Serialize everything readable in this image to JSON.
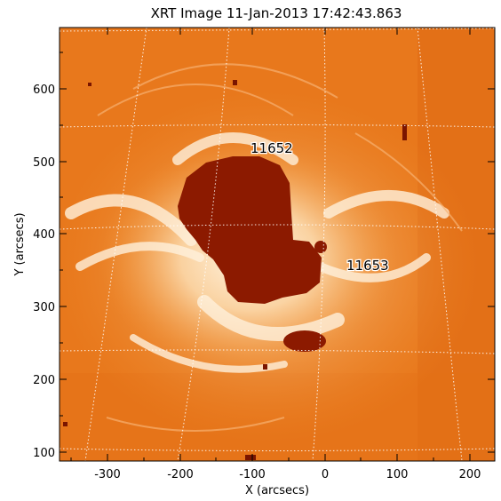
{
  "title": "XRT Image 11-Jan-2013 17:42:43.863",
  "xlabel": "X (arcsecs)",
  "ylabel": "Y (arcsecs)",
  "x_ticks": [
    "-300",
    "-200",
    "-100",
    "0",
    "100",
    "200"
  ],
  "y_ticks": [
    "100",
    "200",
    "300",
    "400",
    "500",
    "600"
  ],
  "region_labels": [
    "11652",
    "11653"
  ],
  "colors": {
    "background": "#e8781c",
    "bright_loops": "#fbe6c6",
    "saturated_core": "#8c1a00"
  }
}
